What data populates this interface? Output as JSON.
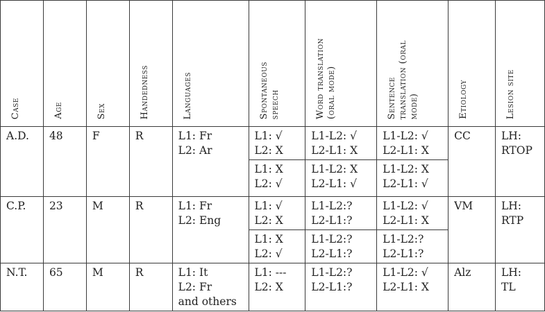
{
  "headers": [
    "Case",
    "Age",
    "Sex",
    "Handedness",
    "Languages",
    "Spontaneous\nspeech",
    "Word translation\n(oral mode)",
    "Sentence\ntranslation (oral\nmode)",
    "Etiology",
    "Lesion site"
  ],
  "rows": {
    "ad": {
      "case": "A.D.",
      "age": "48",
      "sex": "F",
      "handedness": "R",
      "languages": "L1: Fr\nL2: Ar",
      "speech_1": "L1: √\nL2: X",
      "word_1": "L1-L2: √\nL2-L1: X",
      "sentence_1": "L1-L2: √\nL2-L1: X",
      "speech_2": "L1: X\nL2: √",
      "word_2": "L1-L2: X\nL2-L1: √",
      "sentence_2": "L1-L2: X\nL2-L1: √",
      "etiology": "CC",
      "lesion": "LH:\nRTOP"
    },
    "cp": {
      "case": "C.P.",
      "age": "23",
      "sex": "M",
      "handedness": "R",
      "languages": "L1: Fr\nL2: Eng",
      "speech_1": "L1: √\nL2: X",
      "word_1": "L1-L2:?\nL2-L1:?",
      "sentence_1": "L1-L2: √\nL2-L1: X",
      "speech_2": "L1: X\nL2: √",
      "word_2": "L1-L2:?\nL2-L1:?",
      "sentence_2": "L1-L2:?\nL2-L1:?",
      "etiology": "VM",
      "lesion": "LH:\nRTP"
    },
    "nt": {
      "case": "N.T.",
      "age": "65",
      "sex": "M",
      "handedness": "R",
      "languages": "L1: It\nL2: Fr\nand others",
      "speech": "L1: ---\nL2: X",
      "word": "L1-L2:?\nL2-L1:?",
      "sentence": "L1-L2: √\nL2-L1: X",
      "etiology": "Alz",
      "lesion": "LH:\nTL"
    }
  }
}
